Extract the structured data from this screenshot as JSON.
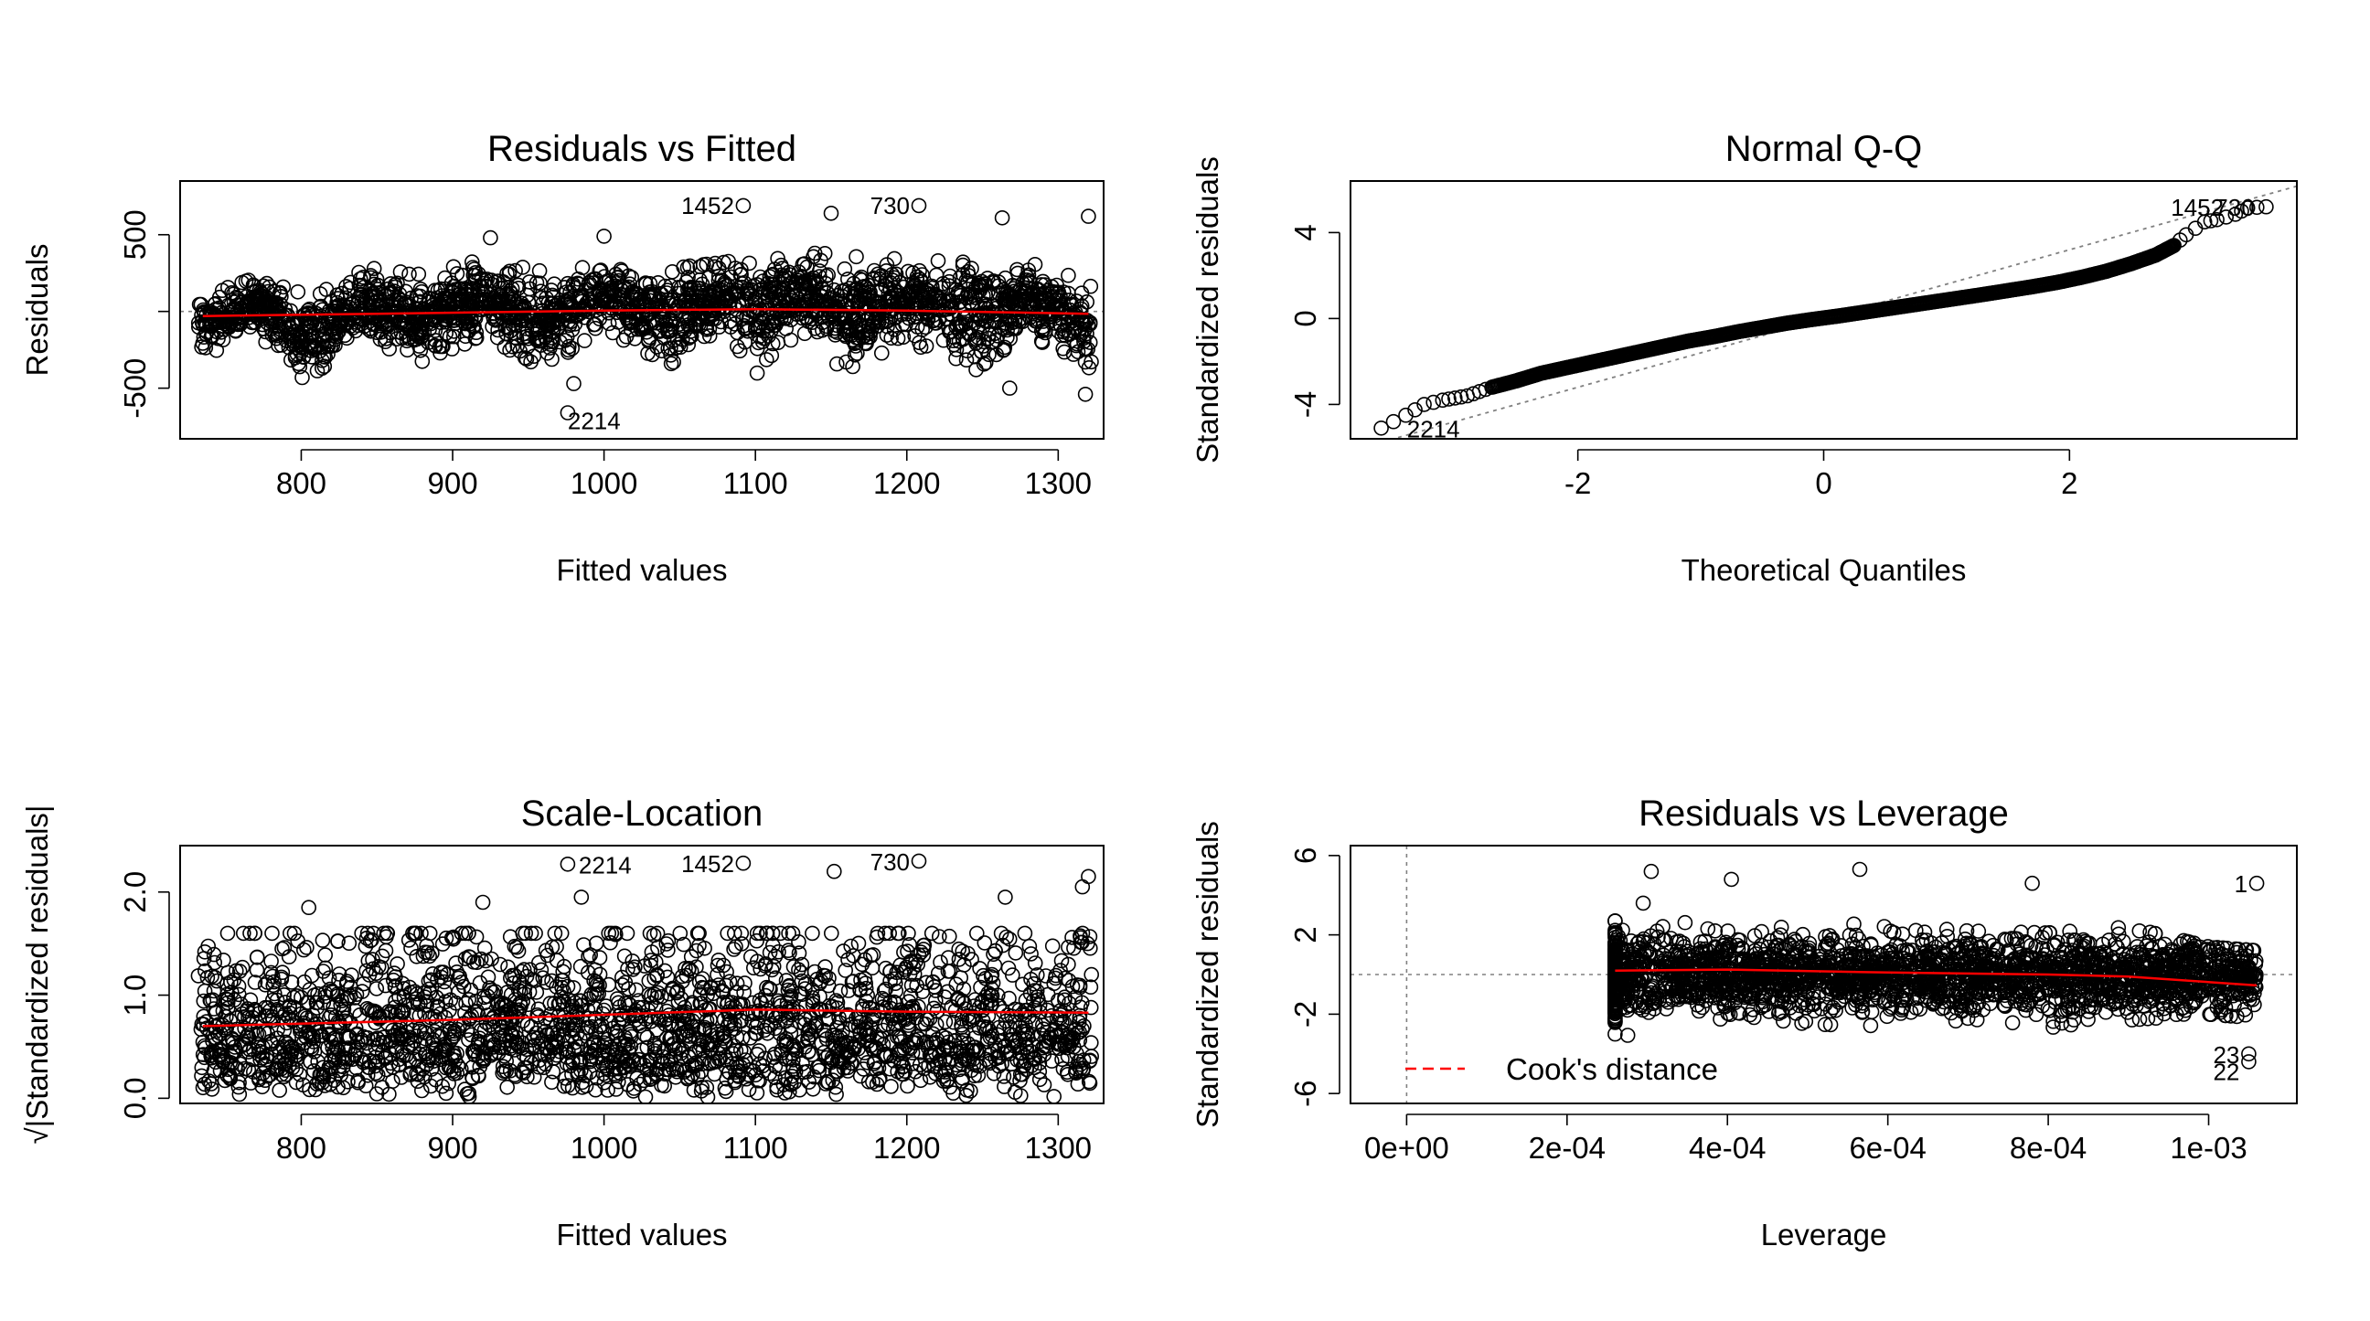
{
  "chart_data": [
    {
      "id": "p1",
      "type": "scatter",
      "title": "Residuals vs Fitted",
      "xlabel": "Fitted values",
      "ylabel": "Residuals",
      "xlim": [
        720,
        1330
      ],
      "ylim": [
        -830,
        850
      ],
      "xticks": [
        800,
        900,
        1000,
        1100,
        1200,
        1300
      ],
      "xtick_labels": [
        "800",
        "900",
        "1000",
        "1100",
        "1200",
        "1300"
      ],
      "yticks": [
        500,
        0,
        -500
      ],
      "ytick_labels": [
        "500",
        "",
        "-500"
      ],
      "ref_hline": 0,
      "point_count_estimate": 2300,
      "cloud": [
        {
          "x": 735,
          "y_lo": -300,
          "y_hi": 100
        },
        {
          "x": 770,
          "y_lo": -120,
          "y_hi": 220
        },
        {
          "x": 800,
          "y_lo": -480,
          "y_hi": 120
        },
        {
          "x": 840,
          "y_lo": -160,
          "y_hi": 290
        },
        {
          "x": 880,
          "y_lo": -360,
          "y_hi": 240
        },
        {
          "x": 920,
          "y_lo": -150,
          "y_hi": 340
        },
        {
          "x": 960,
          "y_lo": -380,
          "y_hi": 260
        },
        {
          "x": 1000,
          "y_lo": -100,
          "y_hi": 300
        },
        {
          "x": 1040,
          "y_lo": -370,
          "y_hi": 280
        },
        {
          "x": 1080,
          "y_lo": -100,
          "y_hi": 320
        },
        {
          "x": 1100,
          "y_lo": -420,
          "y_hi": 370
        },
        {
          "x": 1130,
          "y_lo": -120,
          "y_hi": 400
        },
        {
          "x": 1160,
          "y_lo": -400,
          "y_hi": 360
        },
        {
          "x": 1200,
          "y_lo": -180,
          "y_hi": 340
        },
        {
          "x": 1240,
          "y_lo": -420,
          "y_hi": 320
        },
        {
          "x": 1280,
          "y_lo": -140,
          "y_hi": 320
        },
        {
          "x": 1320,
          "y_lo": -400,
          "y_hi": 200
        }
      ],
      "outliers": [
        {
          "x": 1092,
          "y": 690,
          "label": "1452"
        },
        {
          "x": 1208,
          "y": 690,
          "label": "730"
        },
        {
          "x": 976,
          "y": -660,
          "label": "2214"
        },
        {
          "x": 1150,
          "y": 640,
          "label": ""
        },
        {
          "x": 1263,
          "y": 610,
          "label": ""
        },
        {
          "x": 1320,
          "y": 620,
          "label": ""
        },
        {
          "x": 1000,
          "y": 490,
          "label": ""
        },
        {
          "x": 925,
          "y": 480,
          "label": ""
        },
        {
          "x": 980,
          "y": -470,
          "label": ""
        },
        {
          "x": 1318,
          "y": -540,
          "label": ""
        },
        {
          "x": 1268,
          "y": -500,
          "label": ""
        }
      ],
      "smooth": [
        [
          735,
          -30
        ],
        [
          850,
          -15
        ],
        [
          1000,
          5
        ],
        [
          1100,
          15
        ],
        [
          1200,
          5
        ],
        [
          1320,
          -15
        ]
      ]
    },
    {
      "id": "p2",
      "type": "scatter",
      "title": "Normal Q-Q",
      "xlabel": "Theoretical Quantiles",
      "ylabel": "Standardized residuals",
      "xlim": [
        -3.85,
        3.85
      ],
      "ylim": [
        -5.6,
        6.4
      ],
      "xticks": [
        -2,
        0,
        2
      ],
      "xtick_labels": [
        "-2",
        "0",
        "2"
      ],
      "yticks": [
        4,
        0,
        -4
      ],
      "ytick_labels": [
        "4",
        "0",
        "-4"
      ],
      "ref_line": {
        "intercept": 0,
        "slope": 1.6
      },
      "qq_points": [
        [
          -3.6,
          -5.1
        ],
        [
          -3.4,
          -4.5
        ],
        [
          -3.25,
          -4.0
        ],
        [
          -3.1,
          -3.8
        ],
        [
          -3.0,
          -3.7
        ],
        [
          -2.9,
          -3.6
        ],
        [
          -2.8,
          -3.4
        ],
        [
          -2.7,
          -3.2
        ],
        [
          -2.5,
          -2.9
        ],
        [
          -2.3,
          -2.55
        ],
        [
          -2.1,
          -2.3
        ],
        [
          -1.9,
          -2.05
        ],
        [
          -1.7,
          -1.8
        ],
        [
          -1.5,
          -1.55
        ],
        [
          -1.3,
          -1.3
        ],
        [
          -1.1,
          -1.05
        ],
        [
          -0.9,
          -0.85
        ],
        [
          -0.7,
          -0.62
        ],
        [
          -0.5,
          -0.42
        ],
        [
          -0.3,
          -0.22
        ],
        [
          -0.1,
          -0.05
        ],
        [
          0.1,
          0.1
        ],
        [
          0.3,
          0.27
        ],
        [
          0.5,
          0.44
        ],
        [
          0.7,
          0.61
        ],
        [
          0.9,
          0.78
        ],
        [
          1.1,
          0.95
        ],
        [
          1.3,
          1.12
        ],
        [
          1.5,
          1.3
        ],
        [
          1.7,
          1.48
        ],
        [
          1.9,
          1.68
        ],
        [
          2.1,
          1.92
        ],
        [
          2.3,
          2.2
        ],
        [
          2.5,
          2.55
        ],
        [
          2.7,
          2.95
        ],
        [
          2.85,
          3.4
        ],
        [
          2.95,
          3.9
        ],
        [
          3.1,
          4.5
        ],
        [
          3.2,
          4.6
        ],
        [
          3.35,
          4.85
        ],
        [
          3.45,
          5.15
        ],
        [
          3.6,
          5.2
        ]
      ],
      "labels": [
        {
          "x": 3.3,
          "y": 5.2,
          "text": "1452"
        },
        {
          "x": 3.55,
          "y": 5.2,
          "text": "730"
        },
        {
          "x": -3.45,
          "y": -5.1,
          "text": "2214"
        }
      ]
    },
    {
      "id": "p3",
      "type": "scatter",
      "title": "Scale-Location",
      "xlabel": "Fitted values",
      "ylabel": "√|Standardized residuals|",
      "xlim": [
        720,
        1330
      ],
      "ylim": [
        -0.05,
        2.45
      ],
      "xticks": [
        800,
        900,
        1000,
        1100,
        1200,
        1300
      ],
      "xtick_labels": [
        "800",
        "900",
        "1000",
        "1100",
        "1200",
        "1300"
      ],
      "yticks": [
        2.0,
        1.0,
        0.0
      ],
      "ytick_labels": [
        "2.0",
        "1.0",
        "0.0"
      ],
      "cloud_range": [
        0.0,
        1.6
      ],
      "outliers": [
        {
          "x": 976,
          "y": 2.27,
          "label": "2214"
        },
        {
          "x": 1092,
          "y": 2.28,
          "label": "1452"
        },
        {
          "x": 1208,
          "y": 2.3,
          "label": "730"
        },
        {
          "x": 1152,
          "y": 2.2,
          "label": ""
        },
        {
          "x": 1320,
          "y": 2.15,
          "label": ""
        },
        {
          "x": 1316,
          "y": 2.05,
          "label": ""
        },
        {
          "x": 805,
          "y": 1.85,
          "label": ""
        },
        {
          "x": 920,
          "y": 1.9,
          "label": ""
        },
        {
          "x": 985,
          "y": 1.95,
          "label": ""
        },
        {
          "x": 1265,
          "y": 1.95,
          "label": ""
        }
      ],
      "smooth": [
        [
          735,
          0.7
        ],
        [
          900,
          0.76
        ],
        [
          1000,
          0.81
        ],
        [
          1100,
          0.86
        ],
        [
          1200,
          0.84
        ],
        [
          1320,
          0.83
        ]
      ]
    },
    {
      "id": "p4",
      "type": "scatter",
      "title": "Residuals vs Leverage",
      "xlabel": "Leverage",
      "ylabel": "Standardized residuals",
      "xlim": [
        -7e-05,
        0.00111
      ],
      "ylim": [
        -6.5,
        6.5
      ],
      "xticks": [
        0,
        0.0002,
        0.0004,
        0.0006,
        0.0008,
        0.001
      ],
      "xtick_labels": [
        "0e+00",
        "2e-04",
        "4e-04",
        "6e-04",
        "8e-04",
        "1e-03"
      ],
      "yticks": [
        6,
        2,
        -2,
        -6
      ],
      "ytick_labels": [
        "6",
        "2",
        "-2",
        "-6"
      ],
      "ref_hline": 0,
      "ref_vline": 0,
      "cloud_xrange": [
        0.00026,
        0.00106
      ],
      "cloud": [
        {
          "x": 0.00026,
          "y_lo": -3.0,
          "y_hi": 2.7
        },
        {
          "x": 0.0003,
          "y_lo": -4.8,
          "y_hi": 3.3
        },
        {
          "x": 0.0004,
          "y_lo": -2.0,
          "y_hi": 3.0
        },
        {
          "x": 0.0005,
          "y_lo": -2.5,
          "y_hi": 2.6
        },
        {
          "x": 0.0006,
          "y_lo": -2.6,
          "y_hi": 2.5
        },
        {
          "x": 0.0007,
          "y_lo": -3.3,
          "y_hi": 2.2
        },
        {
          "x": 0.0008,
          "y_lo": -3.4,
          "y_hi": 2.1
        },
        {
          "x": 0.0009,
          "y_lo": -2.3,
          "y_hi": 2.4
        },
        {
          "x": 0.001,
          "y_lo": -2.0,
          "y_hi": 1.4
        },
        {
          "x": 0.00106,
          "y_lo": -2.2,
          "y_hi": 1.2
        }
      ],
      "outliers": [
        {
          "x": 0.000305,
          "y": 5.2,
          "label": ""
        },
        {
          "x": 0.000405,
          "y": 4.8,
          "label": ""
        },
        {
          "x": 0.000565,
          "y": 5.3,
          "label": ""
        },
        {
          "x": 0.00078,
          "y": 4.6,
          "label": ""
        },
        {
          "x": 0.00106,
          "y": 4.6,
          "label": "1"
        },
        {
          "x": 0.000295,
          "y": 3.6,
          "label": ""
        },
        {
          "x": 0.00105,
          "y": -4.0,
          "label": "23"
        },
        {
          "x": 0.00105,
          "y": -4.4,
          "label": "22"
        }
      ],
      "smooth": [
        [
          0.00026,
          0.2
        ],
        [
          0.0004,
          0.25
        ],
        [
          0.0006,
          0.1
        ],
        [
          0.0008,
          0.0
        ],
        [
          0.0009,
          -0.1
        ],
        [
          0.00106,
          -0.55
        ]
      ],
      "legend": {
        "label": "Cook's distance",
        "color": "#ff0000",
        "position": "bottom-left"
      }
    }
  ],
  "colors": {
    "points": "#000000",
    "smooth": "#ff0000",
    "reference": "#808080",
    "background": "#ffffff"
  }
}
